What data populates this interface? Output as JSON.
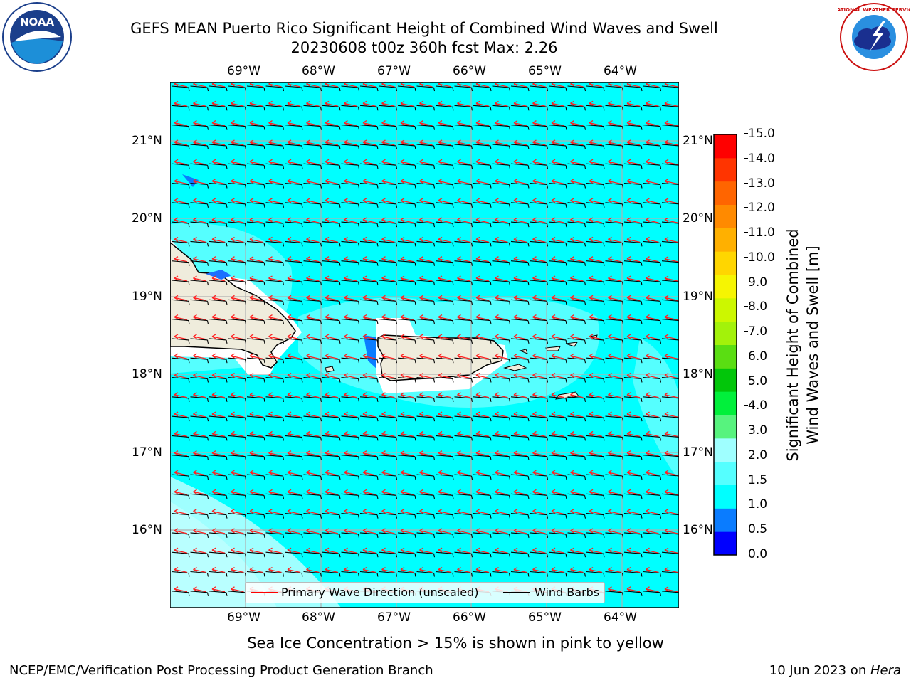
{
  "header": {
    "title_line1": "GEFS MEAN Puerto Rico Significant Height of Combined Wind Waves and Swell",
    "title_line2": "20230608 t00z 360h fcst   Max: 2.26"
  },
  "logos": {
    "left": {
      "name": "NOAA",
      "text": "NOAA",
      "icon": "noaa-logo"
    },
    "right": {
      "name": "National Weather Service",
      "text": "NATIONAL WEATHER SERVICE",
      "icon": "nws-logo"
    }
  },
  "map": {
    "lon_labels": [
      "69°W",
      "68°W",
      "67°W",
      "66°W",
      "65°W",
      "64°W"
    ],
    "lat_labels": [
      "21°N",
      "20°N",
      "19°N",
      "18°N",
      "17°N",
      "16°N"
    ],
    "land_color": "#efecdc",
    "ocean_color": "#00ffff"
  },
  "legend": {
    "items": [
      {
        "label": "Primary Wave Direction (unscaled)",
        "color": "#ff0000"
      },
      {
        "label": "Wind Barbs",
        "color": "#000000"
      }
    ]
  },
  "colorbar": {
    "label_line1": "Significant Height of Combined",
    "label_line2": "Wind Waves and Swell [m]",
    "ticks": [
      "15.0",
      "14.0",
      "13.0",
      "12.0",
      "11.0",
      "10.0",
      "9.0",
      "8.0",
      "7.0",
      "6.0",
      "5.0",
      "4.0",
      "3.0",
      "2.0",
      "1.5",
      "1.0",
      "0.5",
      "0.0"
    ],
    "colors_bottom_to_top": [
      "#0000ff",
      "#0a7cff",
      "#00ffff",
      "#55ffff",
      "#9fffff",
      "#57f37e",
      "#01f03b",
      "#02c60a",
      "#5ade12",
      "#a3f20a",
      "#ccf700",
      "#f6f502",
      "#ffd600",
      "#ffb000",
      "#ff8a00",
      "#ff6500",
      "#ff3400",
      "#ff0000"
    ]
  },
  "caption": "Sea Ice Concentration > 15% is shown in pink to yellow",
  "footer": {
    "left": "NCEP/EMC/Verification Post Processing Product Generation Branch",
    "right_prefix": "10 Jun 2023 on ",
    "right_host": "Hera"
  }
}
